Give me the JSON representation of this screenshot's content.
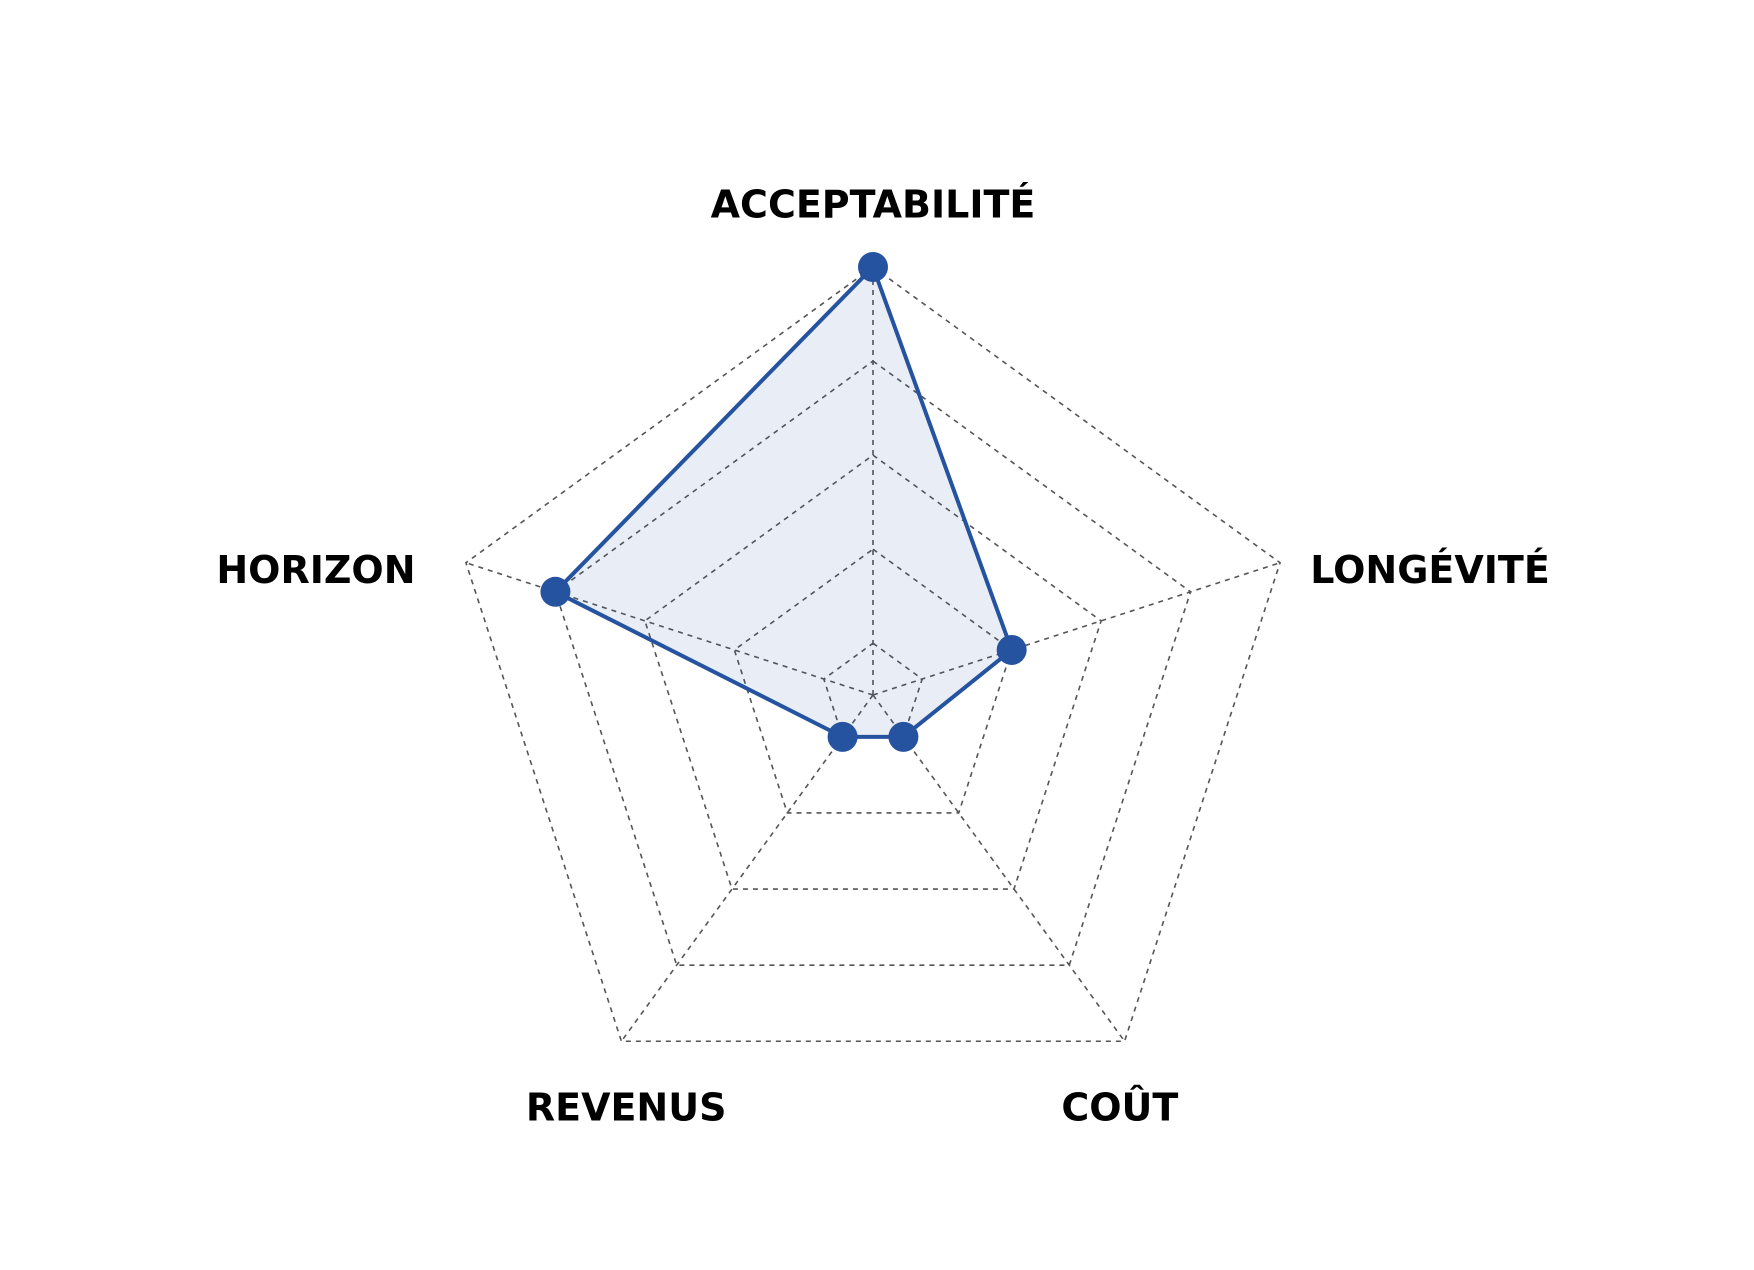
{
  "chart_data": {
    "type": "radar",
    "categories": [
      "ACCEPTABILITÉ",
      "LONGÉVITÉ",
      "COÛT",
      "REVENUS",
      "HORIZON"
    ],
    "series": [
      {
        "color": "#2553a0",
        "values": [
          5,
          2,
          1,
          1,
          4
        ]
      }
    ],
    "ylim": [
      0.45,
      5
    ],
    "yticks": [
      1,
      2,
      3,
      4,
      5
    ],
    "grid": true
  }
}
